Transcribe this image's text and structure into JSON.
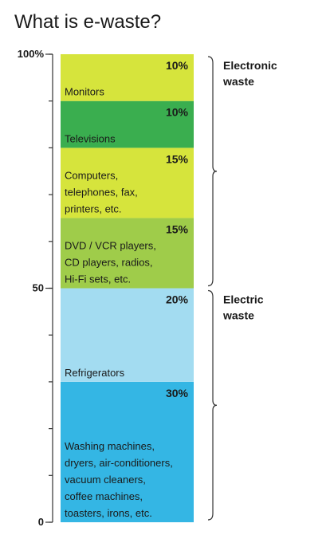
{
  "title": "What is e-waste?",
  "chart_data": {
    "type": "bar",
    "stacked": true,
    "ylim": [
      0,
      100
    ],
    "y_ticks": [
      {
        "value": 0,
        "label": "0"
      },
      {
        "value": 50,
        "label": "50"
      },
      {
        "value": 100,
        "label": "100%"
      }
    ],
    "segments": [
      {
        "value": 30,
        "pct_label": "30%",
        "lines": [
          "Washing machines,",
          "dryers, air-conditioners,",
          "vacuum cleaners,",
          "coffee machines,",
          "toasters, irons, etc."
        ],
        "color": "#34b6e4"
      },
      {
        "value": 20,
        "pct_label": "20%",
        "lines": [
          "Refrigerators"
        ],
        "color": "#a3dcf1"
      },
      {
        "value": 15,
        "pct_label": "15%",
        "lines": [
          "DVD / VCR players,",
          "CD players, radios,",
          "Hi-Fi sets, etc."
        ],
        "color": "#9fcc4a"
      },
      {
        "value": 15,
        "pct_label": "15%",
        "lines": [
          "Computers,",
          "telephones, fax,",
          "printers, etc."
        ],
        "color": "#d6e43c"
      },
      {
        "value": 10,
        "pct_label": "10%",
        "lines": [
          "Televisions"
        ],
        "color": "#3aae4f"
      },
      {
        "value": 10,
        "pct_label": "10%",
        "lines": [
          "Monitors"
        ],
        "color": "#d6e43c"
      }
    ],
    "groups": [
      {
        "lines": [
          "Electronic",
          "waste"
        ],
        "from": 50,
        "to": 100
      },
      {
        "lines": [
          "Electric",
          "waste"
        ],
        "from": 0,
        "to": 50
      }
    ]
  }
}
